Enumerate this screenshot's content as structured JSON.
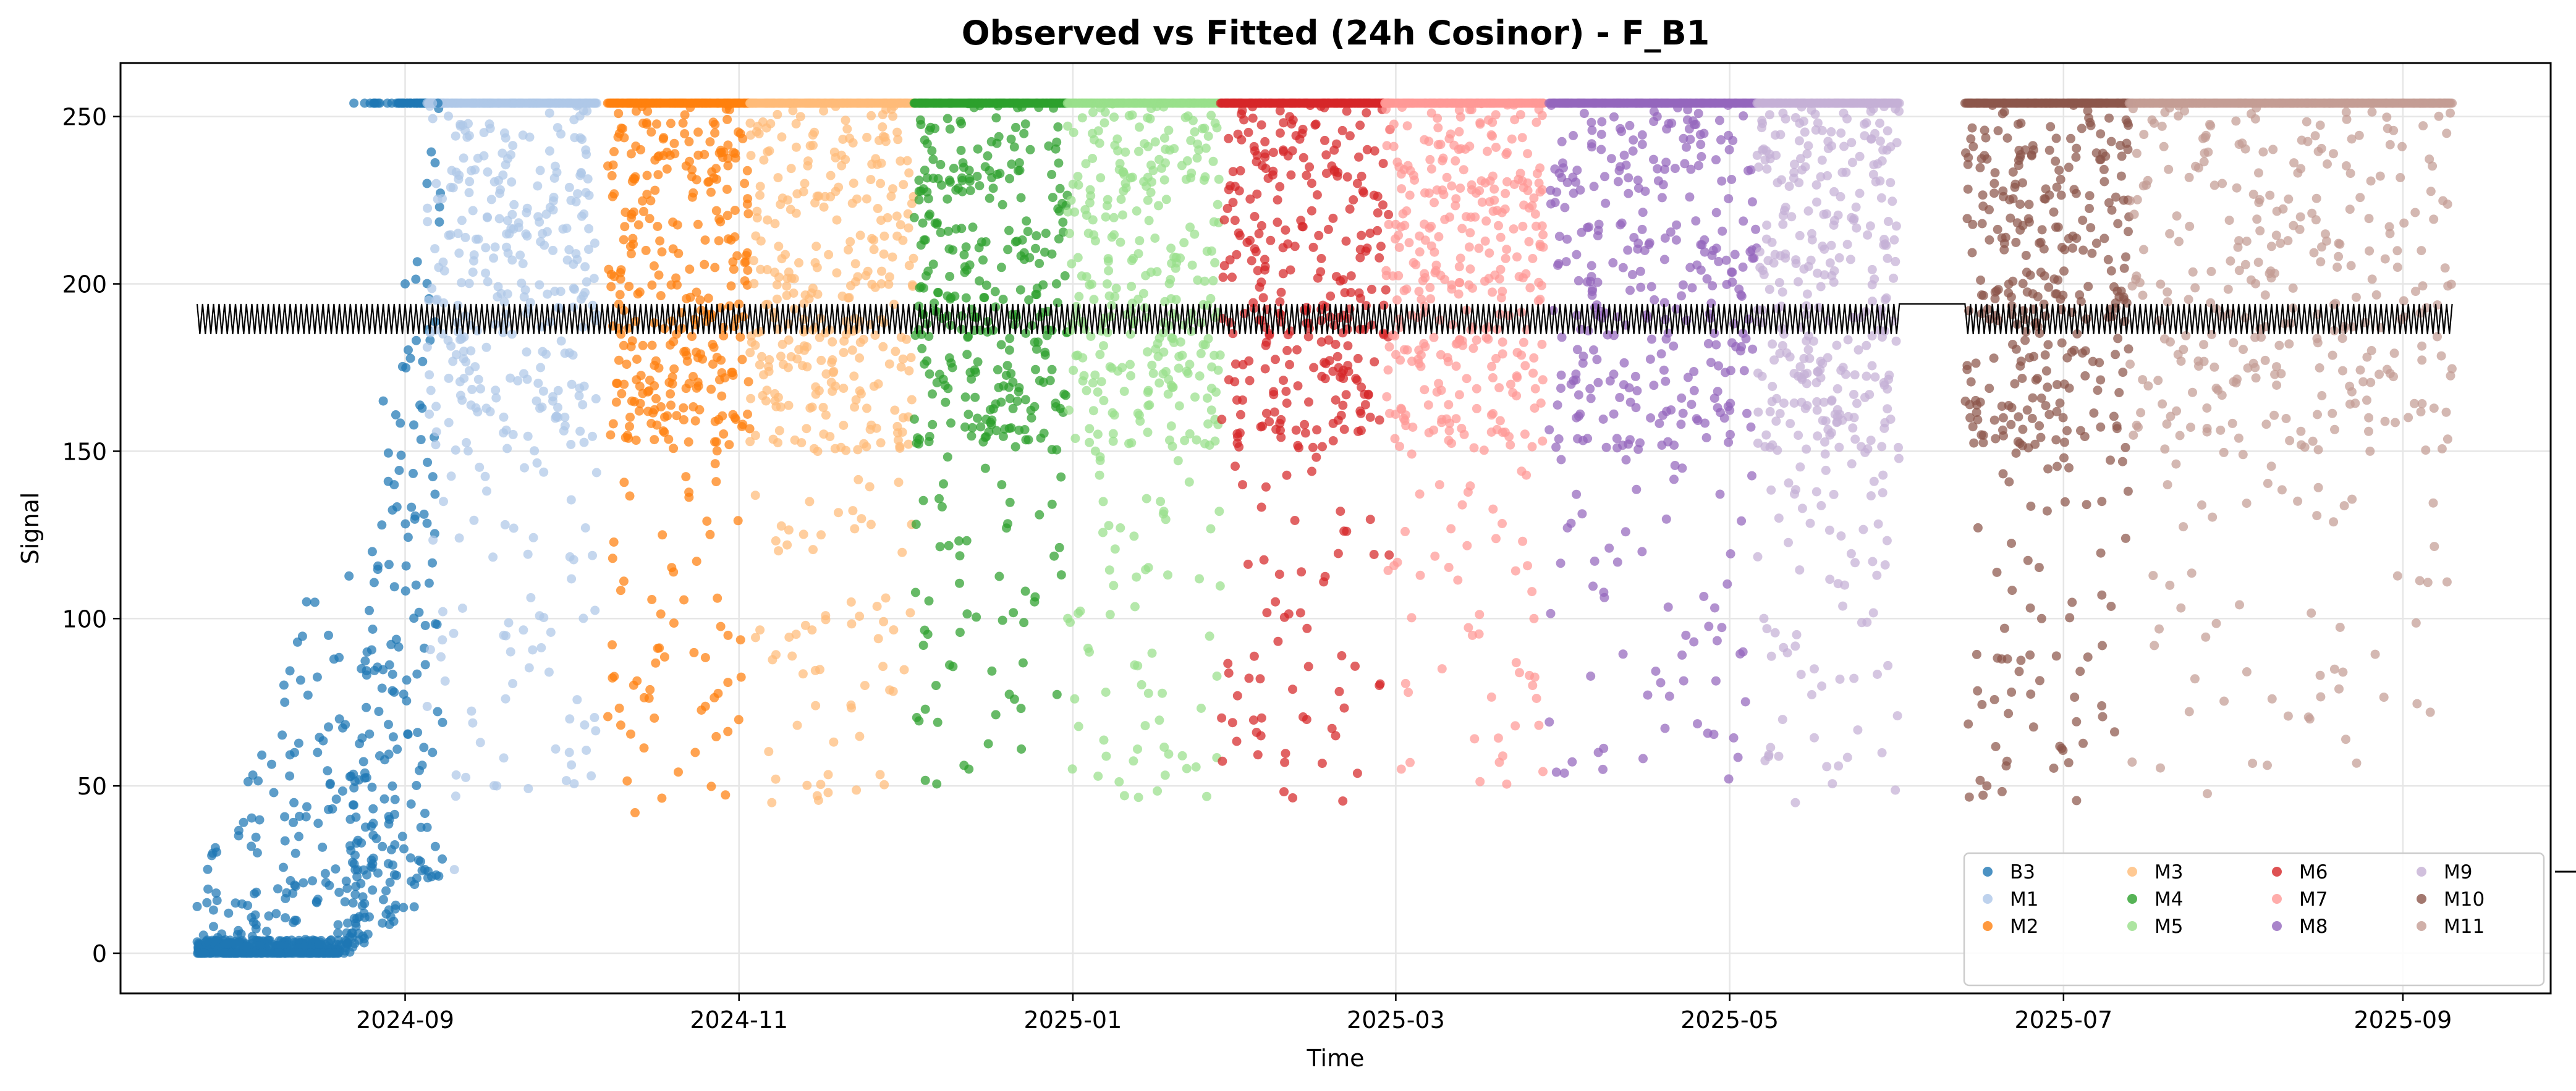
{
  "chart_data": {
    "type": "scatter",
    "title": "Observed vs Fitted (24h Cosinor) - F_B1",
    "xlabel": "Time",
    "ylabel": "Signal",
    "x_type": "date",
    "xlim": [
      "2024-07-11",
      "2025-09-28"
    ],
    "ylim": [
      -12,
      266
    ],
    "x_ticks": [
      "2024-09-01",
      "2024-11-01",
      "2025-01-01",
      "2025-03-01",
      "2025-05-01",
      "2025-07-01",
      "2025-09-01"
    ],
    "x_tick_labels": [
      "2024-09",
      "2024-11",
      "2025-01",
      "2025-03",
      "2025-05",
      "2025-07",
      "2025-09"
    ],
    "y_ticks": [
      0,
      50,
      100,
      150,
      200,
      250
    ],
    "y_tick_labels": [
      "0",
      "50",
      "100",
      "150",
      "200",
      "250"
    ],
    "grid": true,
    "legend": {
      "location": "lower-right",
      "columns": 4
    },
    "series": [
      {
        "name": "B3",
        "color": "#1f77b4",
        "start": "2024-07-25",
        "end": "2024-09-08",
        "summary": "rises from 0 (dense at floor through mid-Aug) to ~250 by early Sep",
        "points": [
          [
            "2024-07-26",
            0
          ],
          [
            "2024-07-28",
            8
          ],
          [
            "2024-08-01",
            15
          ],
          [
            "2024-08-03",
            2
          ],
          [
            "2024-08-05",
            30
          ],
          [
            "2024-08-08",
            48
          ],
          [
            "2024-08-10",
            75
          ],
          [
            "2024-08-12",
            20
          ],
          [
            "2024-08-14",
            105
          ],
          [
            "2024-08-16",
            60
          ],
          [
            "2024-08-18",
            95
          ],
          [
            "2024-08-20",
            70
          ],
          [
            "2024-08-22",
            40
          ],
          [
            "2024-08-24",
            85
          ],
          [
            "2024-08-26",
            120
          ],
          [
            "2024-08-28",
            165
          ],
          [
            "2024-08-30",
            140
          ],
          [
            "2024-09-01",
            200
          ],
          [
            "2024-09-03",
            110
          ],
          [
            "2024-09-05",
            230
          ],
          [
            "2024-09-06",
            60
          ],
          [
            "2024-09-07",
            254
          ]
        ]
      },
      {
        "name": "M1",
        "color": "#aec7e8",
        "start": "2024-09-05",
        "end": "2024-10-06",
        "summary": "scattered 80-254, many points at ~254",
        "points": [
          [
            "2024-09-06",
            254
          ],
          [
            "2024-09-08",
            135
          ],
          [
            "2024-09-10",
            25
          ],
          [
            "2024-09-13",
            180
          ],
          [
            "2024-09-16",
            220
          ],
          [
            "2024-09-19",
            95
          ],
          [
            "2024-09-22",
            254
          ],
          [
            "2024-09-25",
            165
          ],
          [
            "2024-09-28",
            210
          ],
          [
            "2024-10-01",
            60
          ],
          [
            "2024-10-04",
            240
          ]
        ]
      },
      {
        "name": "M2",
        "color": "#ff7f0e",
        "start": "2024-10-08",
        "end": "2024-11-03",
        "summary": "dense band 100-254, sparse down to ~40",
        "points": [
          [
            "2024-10-09",
            254
          ],
          [
            "2024-10-11",
            170
          ],
          [
            "2024-10-13",
            42
          ],
          [
            "2024-10-15",
            210
          ],
          [
            "2024-10-18",
            125
          ],
          [
            "2024-10-21",
            254
          ],
          [
            "2024-10-24",
            60
          ],
          [
            "2024-10-27",
            190
          ],
          [
            "2024-10-30",
            95
          ],
          [
            "2024-11-02",
            230
          ]
        ]
      },
      {
        "name": "M3",
        "color": "#ffbb78",
        "start": "2024-11-03",
        "end": "2024-12-03",
        "summary": "scattered 45-254",
        "points": [
          [
            "2024-11-04",
            254
          ],
          [
            "2024-11-07",
            45
          ],
          [
            "2024-11-10",
            175
          ],
          [
            "2024-11-13",
            230
          ],
          [
            "2024-11-16",
            125
          ],
          [
            "2024-11-20",
            254
          ],
          [
            "2024-11-24",
            80
          ],
          [
            "2024-11-27",
            200
          ],
          [
            "2024-12-01",
            160
          ]
        ]
      },
      {
        "name": "M4",
        "color": "#2ca02c",
        "start": "2024-12-03",
        "end": "2024-12-31",
        "summary": "dense 100-254, sparse down to ~55",
        "points": [
          [
            "2024-12-04",
            254
          ],
          [
            "2024-12-07",
            80
          ],
          [
            "2024-12-10",
            175
          ],
          [
            "2024-12-13",
            55
          ],
          [
            "2024-12-16",
            235
          ],
          [
            "2024-12-19",
            140
          ],
          [
            "2024-12-22",
            254
          ],
          [
            "2024-12-25",
            105
          ],
          [
            "2024-12-29",
            200
          ]
        ]
      },
      {
        "name": "M5",
        "color": "#98df8a",
        "start": "2024-12-31",
        "end": "2025-01-28",
        "summary": "mostly 150-254, sparse to ~60",
        "points": [
          [
            "2025-01-01",
            254
          ],
          [
            "2025-01-04",
            90
          ],
          [
            "2025-01-07",
            220
          ],
          [
            "2025-01-10",
            175
          ],
          [
            "2025-01-14",
            254
          ],
          [
            "2025-01-17",
            135
          ],
          [
            "2025-01-21",
            59
          ],
          [
            "2025-01-24",
            240
          ],
          [
            "2025-01-27",
            190
          ]
        ]
      },
      {
        "name": "M6",
        "color": "#d62728",
        "start": "2025-01-28",
        "end": "2025-02-28",
        "summary": "dense 100-254, sparse to ~65",
        "points": [
          [
            "2025-01-29",
            254
          ],
          [
            "2025-02-01",
            140
          ],
          [
            "2025-02-04",
            215
          ],
          [
            "2025-02-07",
            105
          ],
          [
            "2025-02-10",
            254
          ],
          [
            "2025-02-14",
            175
          ],
          [
            "2025-02-18",
            65
          ],
          [
            "2025-02-22",
            230
          ],
          [
            "2025-02-26",
            80
          ]
        ]
      },
      {
        "name": "M7",
        "color": "#ff9896",
        "start": "2025-02-27",
        "end": "2025-03-28",
        "summary": "scattered 55-254",
        "points": [
          [
            "2025-02-28",
            254
          ],
          [
            "2025-03-02",
            55
          ],
          [
            "2025-03-05",
            190
          ],
          [
            "2025-03-09",
            140
          ],
          [
            "2025-03-12",
            254
          ],
          [
            "2025-03-15",
            95
          ],
          [
            "2025-03-19",
            225
          ],
          [
            "2025-03-22",
            170
          ],
          [
            "2025-03-26",
            80
          ]
        ]
      },
      {
        "name": "M8",
        "color": "#9467bd",
        "start": "2025-03-29",
        "end": "2025-05-06",
        "summary": "dense 150-254 upper band, sparse to ~60",
        "points": [
          [
            "2025-03-30",
            254
          ],
          [
            "2025-04-03",
            160
          ],
          [
            "2025-04-07",
            60
          ],
          [
            "2025-04-11",
            235
          ],
          [
            "2025-04-15",
            120
          ],
          [
            "2025-04-19",
            254
          ],
          [
            "2025-04-23",
            95
          ],
          [
            "2025-04-28",
            210
          ],
          [
            "2025-05-03",
            180
          ]
        ]
      },
      {
        "name": "M9",
        "color": "#c5b0d5",
        "start": "2025-05-06",
        "end": "2025-06-01",
        "summary": "scattered 45-254",
        "points": [
          [
            "2025-05-07",
            254
          ],
          [
            "2025-05-10",
            130
          ],
          [
            "2025-05-13",
            45
          ],
          [
            "2025-05-16",
            215
          ],
          [
            "2025-05-19",
            254
          ],
          [
            "2025-05-22",
            110
          ],
          [
            "2025-05-25",
            190
          ],
          [
            "2025-05-29",
            240
          ]
        ]
      },
      {
        "name": "M10",
        "color": "#8c564b",
        "start": "2025-06-13",
        "end": "2025-07-13",
        "summary": "upper band 200-254, scattered to ~50",
        "points": [
          [
            "2025-06-14",
            254
          ],
          [
            "2025-06-17",
            50
          ],
          [
            "2025-06-20",
            160
          ],
          [
            "2025-06-24",
            240
          ],
          [
            "2025-06-27",
            100
          ],
          [
            "2025-07-01",
            254
          ],
          [
            "2025-07-05",
            180
          ],
          [
            "2025-07-08",
            135
          ],
          [
            "2025-07-12",
            225
          ]
        ]
      },
      {
        "name": "M11",
        "color": "#c49c94",
        "start": "2025-07-13",
        "end": "2025-09-10",
        "summary": "scattered 65-254",
        "points": [
          [
            "2025-07-15",
            254
          ],
          [
            "2025-07-20",
            140
          ],
          [
            "2025-07-25",
            82
          ],
          [
            "2025-07-30",
            230
          ],
          [
            "2025-08-05",
            175
          ],
          [
            "2025-08-10",
            254
          ],
          [
            "2025-08-15",
            70
          ],
          [
            "2025-08-20",
            205
          ],
          [
            "2025-08-26",
            150
          ],
          [
            "2025-09-01",
            254
          ],
          [
            "2025-09-06",
            72
          ],
          [
            "2025-09-09",
            245
          ]
        ]
      }
    ],
    "fitted": {
      "name": "Fitted (24h)",
      "color": "#000000",
      "period_hours": 24,
      "mesor": 189.5,
      "amplitude": 4.5,
      "segments": [
        [
          "2024-07-25",
          "2025-06-01"
        ],
        [
          "2025-06-13",
          "2025-09-10"
        ]
      ]
    }
  }
}
